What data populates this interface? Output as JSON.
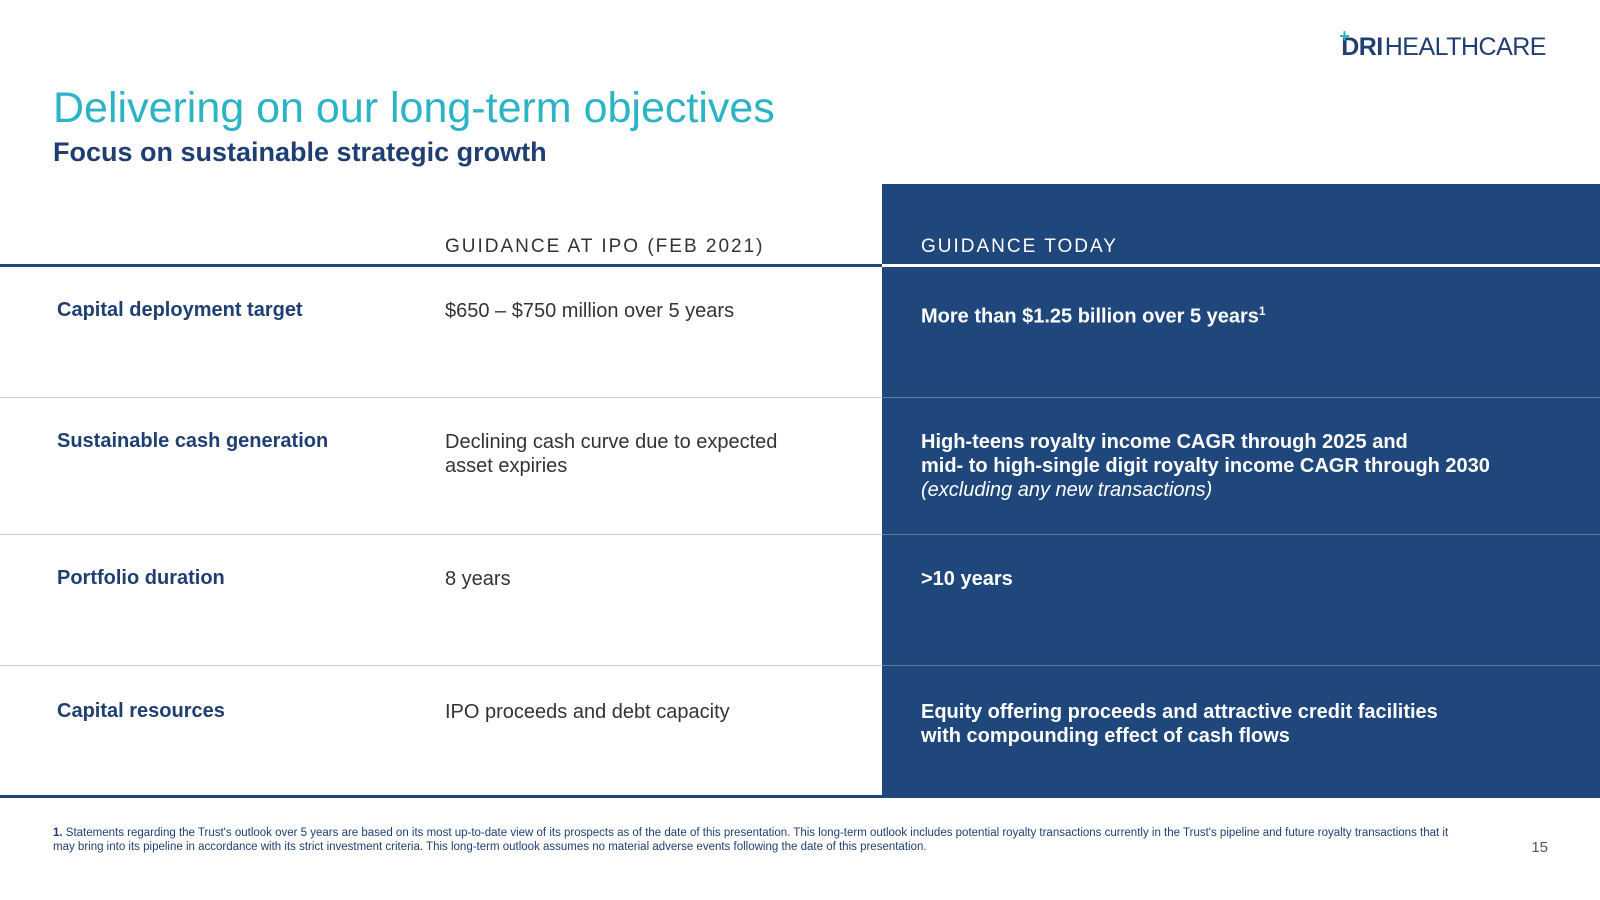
{
  "logo": {
    "brand_bold": "DRI",
    "brand_light": "HEALTHCARE"
  },
  "title": "Delivering on our long-term objectives",
  "subtitle": "Focus on sustainable strategic growth",
  "columns": {
    "ipo": "GUIDANCE AT IPO (FEB 2021)",
    "today": "GUIDANCE TODAY"
  },
  "rows": [
    {
      "label": "Capital deployment target",
      "ipo": "$650 – $750 million over 5 years",
      "today": "More than $1.25 billion over 5 years",
      "today_sup": "1"
    },
    {
      "label": "Sustainable cash generation",
      "ipo_line1": "Declining cash curve due to expected",
      "ipo_line2": "asset expiries",
      "today_line1": "High-teens royalty income CAGR through 2025 and",
      "today_line2": "mid- to high-single digit royalty income CAGR through 2030",
      "today_note": "(excluding any new transactions)"
    },
    {
      "label": "Portfolio duration",
      "ipo": "8 years",
      "today": ">10 years"
    },
    {
      "label": "Capital resources",
      "ipo": "IPO proceeds and debt capacity",
      "today_line1": "Equity offering proceeds and attractive credit facilities",
      "today_line2": "with compounding effect of cash flows"
    }
  ],
  "footnote": {
    "marker": "1.",
    "text": "Statements regarding the Trust's outlook over 5 years are based on its most up-to-date view of its prospects as of the date of this presentation. This long-term outlook includes potential royalty transactions currently in the Trust's pipeline and future royalty transactions that it may bring into its pipeline in accordance with its strict investment criteria. This long-term outlook assumes no material adverse events following the date of this presentation."
  },
  "page_number": "15",
  "colors": {
    "teal": "#2bb3c6",
    "navy": "#1f3f73",
    "panel": "#1f477c"
  }
}
